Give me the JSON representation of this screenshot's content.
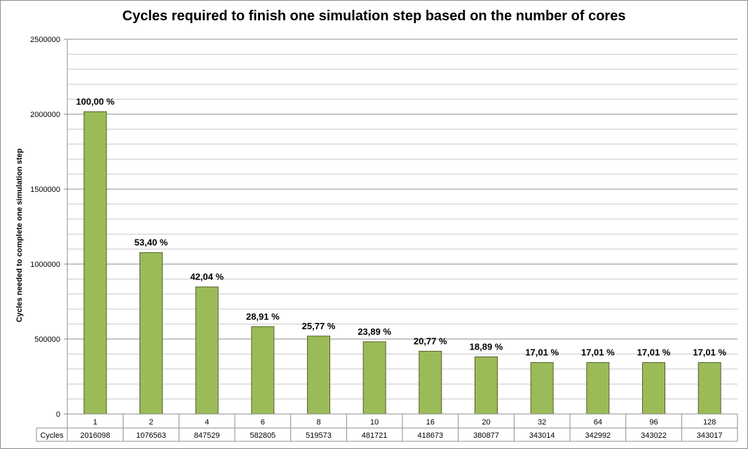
{
  "chart_data": {
    "type": "bar",
    "title": "Cycles required to finish one simulation step based on the number of cores",
    "xlabel": "",
    "ylabel": "Cycles needed to complete one simulation step",
    "ylim": [
      0,
      2500000
    ],
    "yticks": [
      "0",
      "500000",
      "1000000",
      "1500000",
      "2000000",
      "2500000"
    ],
    "categories": [
      "1",
      "2",
      "4",
      "6",
      "8",
      "10",
      "16",
      "20",
      "32",
      "64",
      "96",
      "128"
    ],
    "series": [
      {
        "name": "Cycles",
        "values": [
          2016098,
          1076563,
          847529,
          582805,
          519573,
          481721,
          418673,
          380877,
          343014,
          342992,
          343022,
          343017
        ]
      }
    ],
    "data_labels": [
      "100,00 %",
      "53,40 %",
      "42,04 %",
      "28,91 %",
      "25,77 %",
      "23,89 %",
      "20,77 %",
      "18,89 %",
      "17,01 %",
      "17,01 %",
      "17,01 %",
      "17,01 %"
    ],
    "table_row_label": "Cycles",
    "table_values": [
      "2016098",
      "1076563",
      "847529",
      "582805",
      "519573",
      "481721",
      "418673",
      "380877",
      "343014",
      "342992",
      "343022",
      "343017"
    ],
    "bar_color": "#9bbb59",
    "bar_border_color": "#4f6228",
    "grid": true,
    "legend": "none"
  }
}
